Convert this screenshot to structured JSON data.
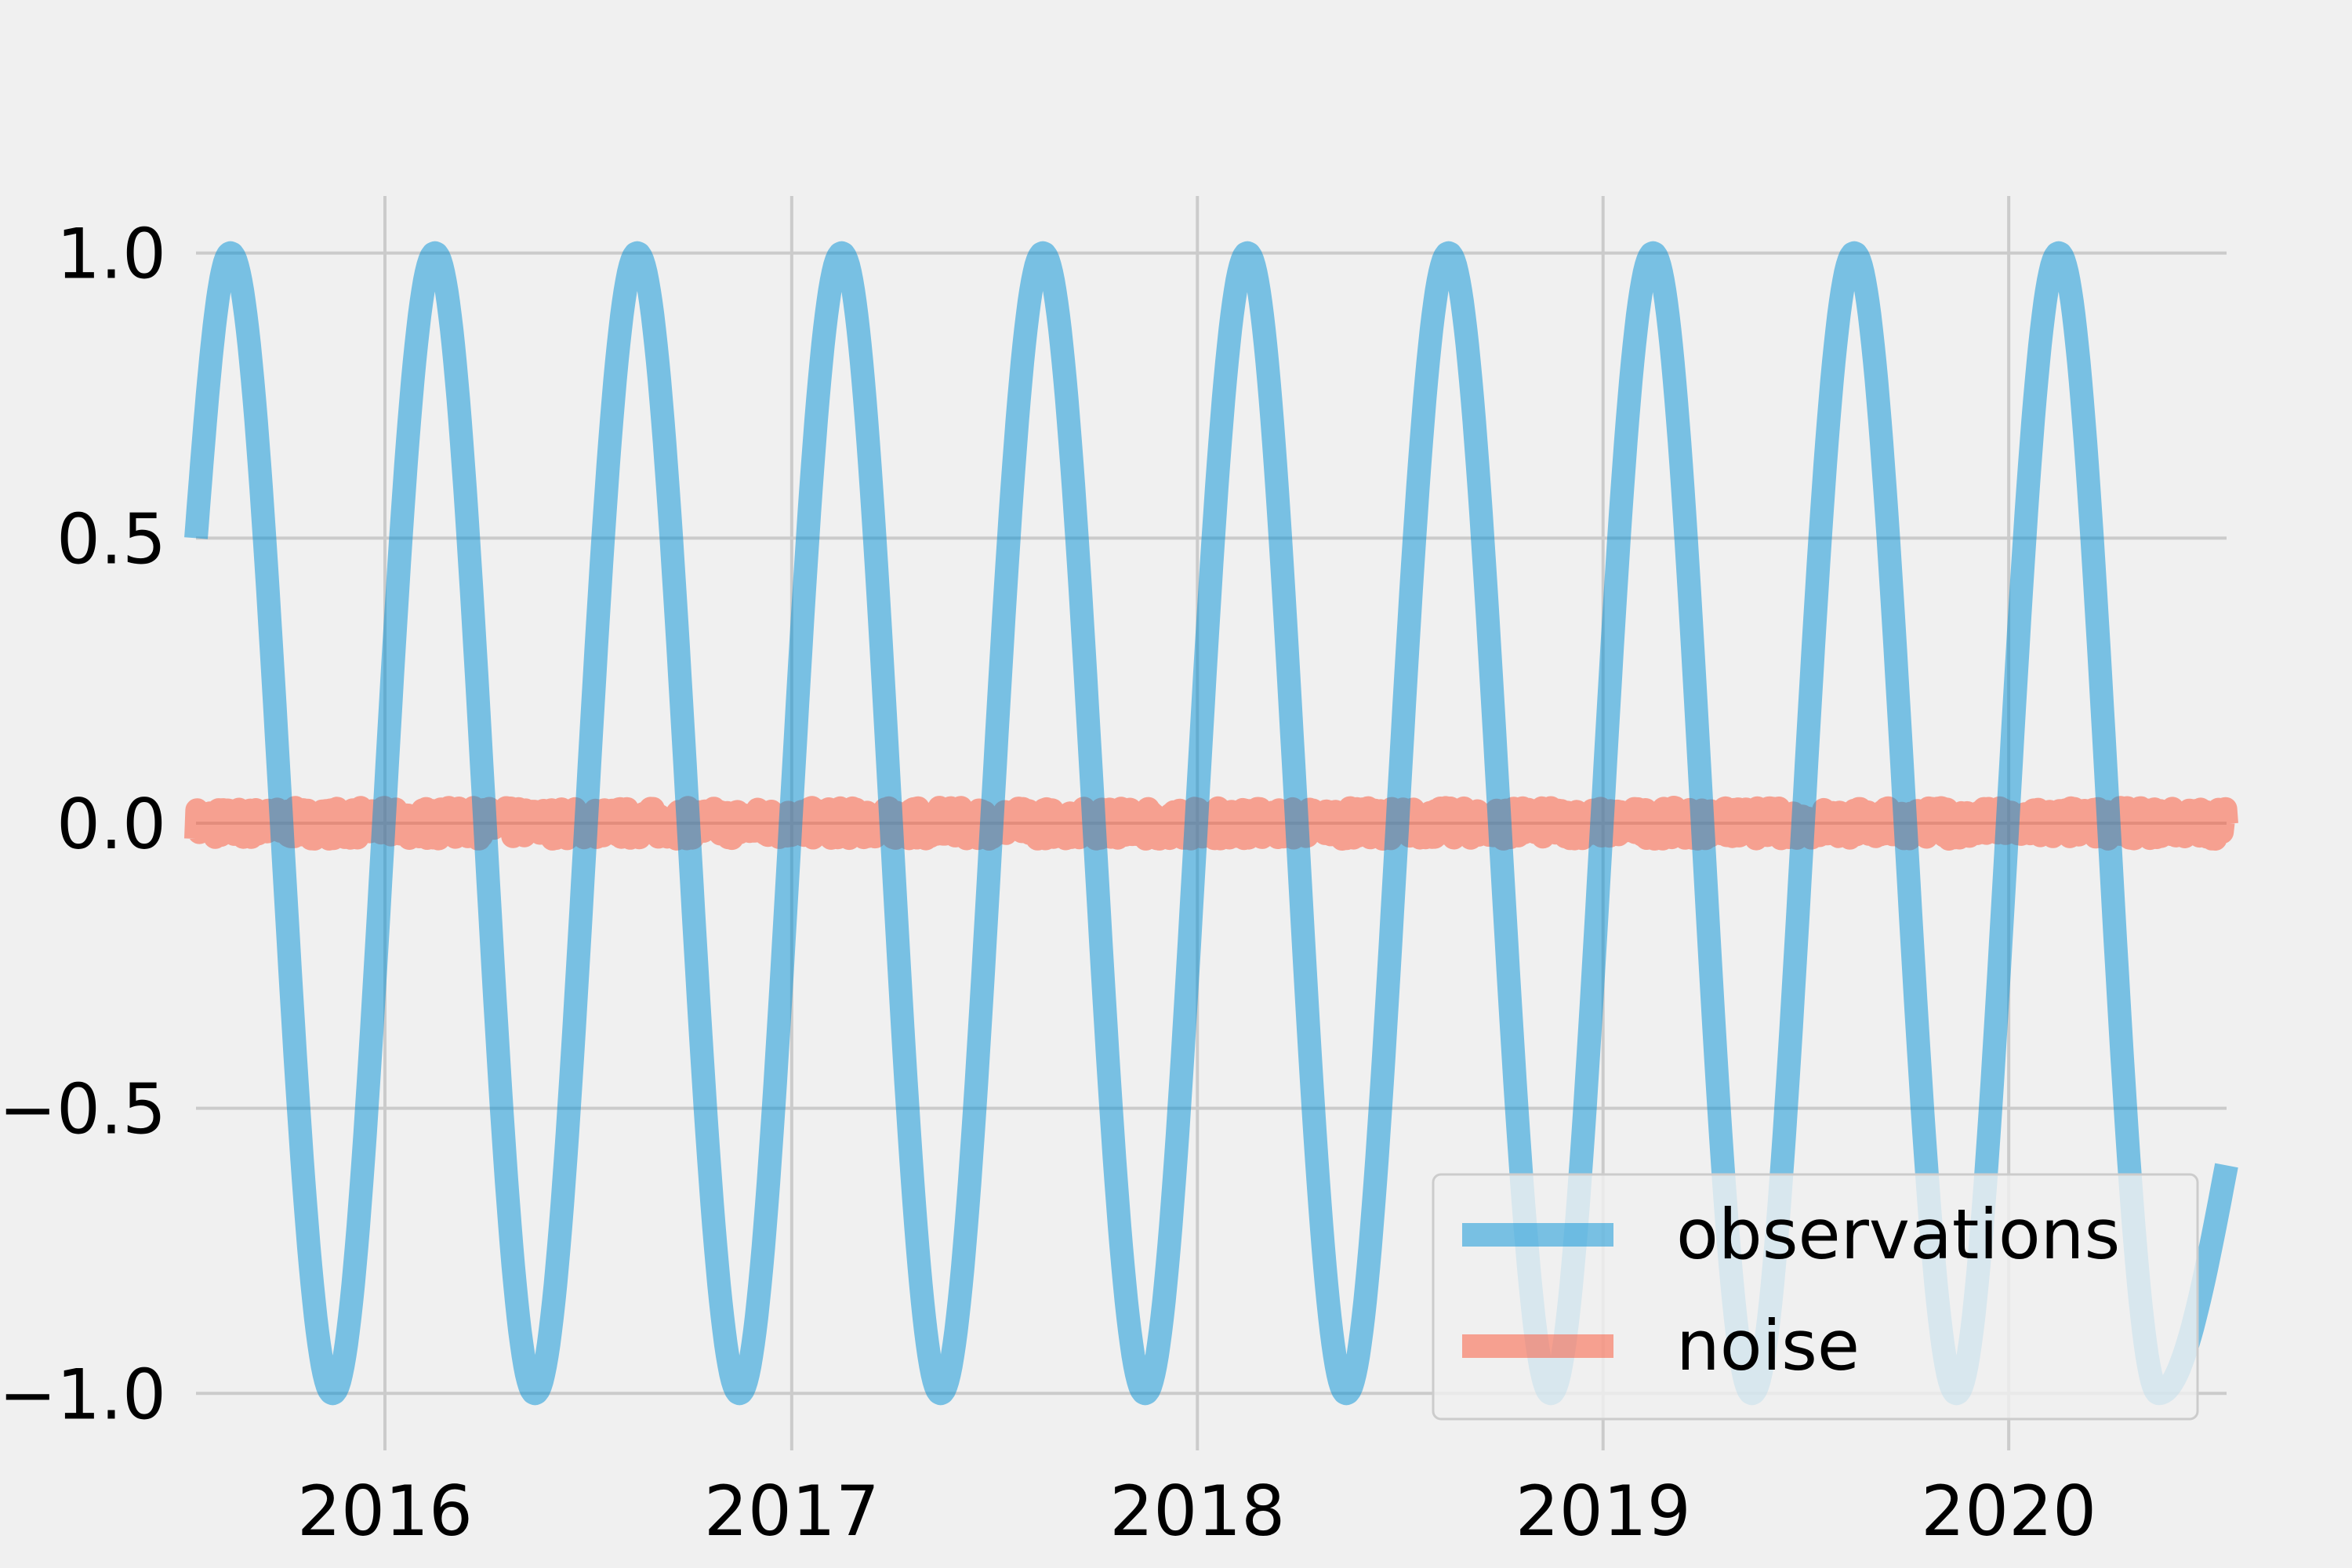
{
  "chart_data": {
    "type": "line",
    "title": "",
    "xlabel": "",
    "ylabel": "",
    "x_axis": {
      "type": "date",
      "range": [
        "2015-07-15",
        "2020-07-15"
      ],
      "ticks": [
        "2016",
        "2017",
        "2018",
        "2019",
        "2020"
      ]
    },
    "y_axis": {
      "range": [
        -1.1,
        1.1
      ],
      "ticks": [
        -1.0,
        -0.5,
        0.0,
        0.5,
        1.0
      ],
      "tick_labels": [
        "−1.0",
        "−0.5",
        "0.0",
        "0.5",
        "1.0"
      ]
    },
    "grid": true,
    "legend": {
      "placement": "lower-right"
    },
    "series": [
      {
        "name": "observations",
        "color": "#008fd5",
        "peaks": [
          "2015-08-15",
          "2016-02-15",
          "2016-08-15",
          "2017-02-15",
          "2017-08-15",
          "2018-02-15",
          "2018-08-15",
          "2019-02-15",
          "2019-08-15",
          "2020-02-15"
        ],
        "troughs": [
          "2015-11-15",
          "2016-05-15",
          "2016-11-15",
          "2017-05-15",
          "2017-11-15",
          "2018-05-15",
          "2018-11-15",
          "2019-05-15",
          "2019-11-15",
          "2020-05-15"
        ],
        "peak_value": 1.0,
        "trough_value": -1.0,
        "start_value": 0.5,
        "end_value": -0.6
      },
      {
        "name": "noise",
        "color": "#fc4f30",
        "level": 0.0,
        "amplitude": 0.05
      }
    ]
  }
}
